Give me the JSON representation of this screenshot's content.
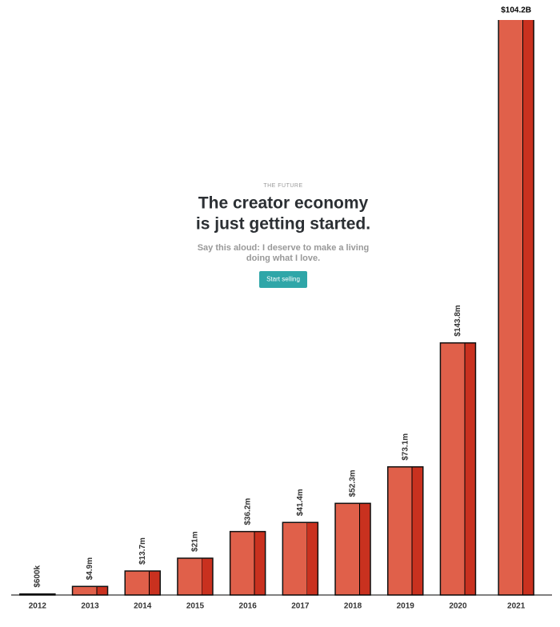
{
  "hero": {
    "eyebrow": "THE FUTURE",
    "heading_lines": [
      "The creator economy",
      "is just getting started."
    ],
    "subtitle_lines": [
      "Say this aloud: I deserve to make a living",
      "doing what I love."
    ],
    "button": "Start selling"
  },
  "chart_data": {
    "type": "bar",
    "categories": [
      "2012",
      "2013",
      "2014",
      "2015",
      "2016",
      "2017",
      "2018",
      "2019",
      "2020",
      "2021"
    ],
    "values": [
      0.6,
      4.9,
      13.7,
      21,
      36.2,
      41.4,
      52.3,
      73.1,
      143.8,
      104200
    ],
    "value_labels": [
      "$600k",
      "$4.9m",
      "$13.7m",
      "$21m",
      "$36.2m",
      "$41.4m",
      "$52.3m",
      "$73.1m",
      "$143.8m",
      "$104.2B"
    ],
    "color": "#e0604a",
    "side_color": "#c9311f",
    "ylim": [
      0,
      328
    ]
  }
}
